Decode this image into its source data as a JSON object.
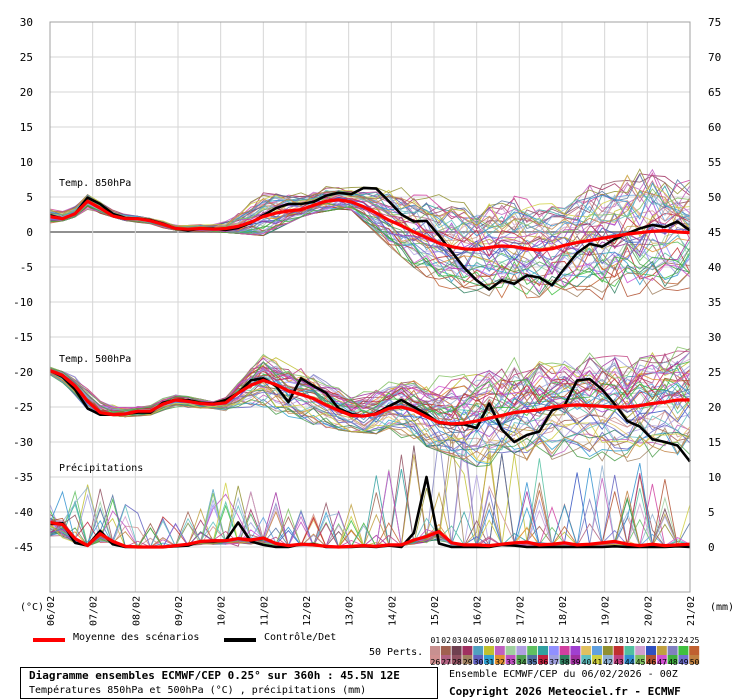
{
  "chart_data": {
    "type": "line",
    "left_axis_ticks": [
      30,
      25,
      20,
      15,
      10,
      5,
      0,
      -5,
      -10,
      -15,
      -20,
      -25,
      -30,
      -35,
      -40,
      -45
    ],
    "right_axis_ticks": [
      75,
      70,
      65,
      60,
      55,
      50,
      45,
      40,
      35,
      30,
      25,
      20,
      15,
      10,
      5,
      0
    ],
    "left_unit": "(°C)",
    "right_unit": "(mm)",
    "x_labels": [
      "06/02",
      "07/02",
      "08/02",
      "09/02",
      "10/02",
      "11/02",
      "12/02",
      "13/02",
      "14/02",
      "15/02",
      "16/02",
      "17/02",
      "18/02",
      "19/02",
      "20/02",
      "21/02"
    ],
    "panels": [
      {
        "label": "Temp. 850hPa",
        "mean": [
          2.2,
          1.9,
          2.6,
          4.4,
          3.4,
          2.3,
          1.9,
          1.9,
          1.6,
          1.1,
          0.5,
          0.4,
          0.5,
          0.4,
          0.5,
          0.8,
          1.4,
          2.2,
          2.7,
          3.0,
          3.2,
          3.8,
          4.4,
          4.6,
          4.3,
          3.6,
          2.7,
          1.7,
          0.9,
          0.0,
          -0.8,
          -1.6,
          -2.1,
          -2.4,
          -2.5,
          -2.2,
          -2.0,
          -2.1,
          -2.4,
          -2.6,
          -2.4,
          -1.9,
          -1.5,
          -1.2,
          -0.9,
          -0.6,
          -0.3,
          -0.1,
          0.1,
          0.2,
          0.0,
          -0.1
        ],
        "control": [
          2.4,
          1.9,
          2.6,
          4.9,
          4.0,
          2.6,
          2.0,
          1.9,
          1.7,
          1.2,
          0.5,
          0.2,
          0.5,
          0.5,
          0.3,
          0.6,
          1.3,
          2.4,
          3.4,
          4.0,
          4.0,
          4.3,
          5.2,
          5.6,
          5.4,
          6.3,
          6.2,
          4.4,
          2.5,
          1.5,
          1.6,
          -0.5,
          -2.8,
          -5.1,
          -6.9,
          -8.2,
          -6.9,
          -7.4,
          -6.2,
          -6.5,
          -7.6,
          -5.2,
          -3.0,
          -1.7,
          -2.1,
          -1.0,
          -0.2,
          0.5,
          1.0,
          0.7,
          1.5,
          0.2
        ],
        "spread_daily": [
          [
            1.0,
            3.3
          ],
          [
            3.0,
            5.6
          ],
          [
            1.2,
            2.3
          ],
          [
            0.2,
            1.3
          ],
          [
            0.0,
            1.5
          ],
          [
            -0.5,
            7.5
          ],
          [
            2.5,
            6.8
          ],
          [
            3.5,
            7.5
          ],
          [
            -2.3,
            7.7
          ],
          [
            -7.5,
            6.2
          ],
          [
            -9.2,
            5.5
          ],
          [
            -9.5,
            6.2
          ],
          [
            -9.0,
            7.0
          ],
          [
            -9.7,
            8.8
          ],
          [
            -9.7,
            10.0
          ],
          [
            -8.0,
            8.3
          ]
        ]
      },
      {
        "label": "Temp. 500hPa",
        "mean": [
          -19.8,
          -20.5,
          -22.0,
          -24.2,
          -25.8,
          -26.1,
          -26.0,
          -25.6,
          -25.6,
          -24.6,
          -24.0,
          -24.2,
          -24.5,
          -24.6,
          -24.4,
          -23.0,
          -21.9,
          -21.2,
          -21.8,
          -22.7,
          -23.2,
          -23.8,
          -24.7,
          -25.5,
          -26.2,
          -26.3,
          -26.0,
          -25.2,
          -25.0,
          -25.5,
          -26.4,
          -27.2,
          -27.4,
          -27.3,
          -27.0,
          -26.6,
          -26.2,
          -25.8,
          -25.6,
          -25.4,
          -25.0,
          -24.8,
          -24.7,
          -24.8,
          -24.9,
          -25.0,
          -25.0,
          -24.8,
          -24.5,
          -24.3,
          -24.0,
          -24.0
        ],
        "control": [
          -19.8,
          -20.7,
          -22.5,
          -25.2,
          -26.1,
          -26.1,
          -26.0,
          -25.8,
          -25.8,
          -24.4,
          -24.0,
          -24.0,
          -24.4,
          -24.5,
          -24.0,
          -23.0,
          -21.2,
          -20.9,
          -22.0,
          -24.3,
          -20.9,
          -22.0,
          -23.0,
          -25.2,
          -26.0,
          -26.3,
          -25.9,
          -24.9,
          -24.0,
          -25.0,
          -26.0,
          -27.3,
          -27.5,
          -27.5,
          -28.0,
          -24.5,
          -28.2,
          -30.0,
          -29.0,
          -28.5,
          -25.5,
          -24.8,
          -21.2,
          -21.0,
          -22.5,
          -24.6,
          -27.0,
          -27.8,
          -29.6,
          -30.0,
          -30.5,
          -32.8
        ],
        "spread_daily": [
          [
            -20.5,
            -19.3
          ],
          [
            -26.0,
            -21.5
          ],
          [
            -26.5,
            -24.8
          ],
          [
            -25.5,
            -23.2
          ],
          [
            -26.0,
            -24.5
          ],
          [
            -26.5,
            -17.5
          ],
          [
            -27.5,
            -19.0
          ],
          [
            -28.5,
            -21.0
          ],
          [
            -29.0,
            -21.0
          ],
          [
            -31.0,
            -18.0
          ],
          [
            -33.5,
            -16.5
          ],
          [
            -33.0,
            -16.5
          ],
          [
            -32.5,
            -17.0
          ],
          [
            -33.5,
            -16.0
          ],
          [
            -33.0,
            -16.0
          ],
          [
            -33.0,
            -15.0
          ]
        ]
      },
      {
        "label": "Précipitations",
        "unit": "mm",
        "mean": [
          3.5,
          3.2,
          1.2,
          0.2,
          1.9,
          0.8,
          0.1,
          0.0,
          0.0,
          0.0,
          0.2,
          0.4,
          0.8,
          0.9,
          0.9,
          1.2,
          1.0,
          1.3,
          0.5,
          0.2,
          0.4,
          0.3,
          0.1,
          0.0,
          0.1,
          0.2,
          0.1,
          0.3,
          0.3,
          1.0,
          1.5,
          2.2,
          0.6,
          0.3,
          0.3,
          0.2,
          0.4,
          0.6,
          0.7,
          0.3,
          0.4,
          0.6,
          0.3,
          0.4,
          0.6,
          0.8,
          0.4,
          0.2,
          0.4,
          0.2,
          0.3,
          0.4
        ],
        "control": [
          3.3,
          3.4,
          0.6,
          0.2,
          2.3,
          0.4,
          0.0,
          0.0,
          0.0,
          0.0,
          0.1,
          0.2,
          0.8,
          0.8,
          0.9,
          3.5,
          0.8,
          0.3,
          0.0,
          0.0,
          0.4,
          0.4,
          0.0,
          0.0,
          0.0,
          0.1,
          0.0,
          0.2,
          0.0,
          2.0,
          10.0,
          0.5,
          0.0,
          0.0,
          0.0,
          0.0,
          0.3,
          0.2,
          0.0,
          0.0,
          0.0,
          0.0,
          0.0,
          0.0,
          0.0,
          0.1,
          0.0,
          0.0,
          0.0,
          0.0,
          0.1,
          0.0
        ],
        "spread_daily_max": [
          8.0,
          10.0,
          5.5,
          4.0,
          10.0,
          9.0,
          6.0,
          7.5,
          13.0,
          17.0,
          16.0,
          14.0,
          12.0,
          13.0,
          12.0,
          8.0
        ]
      }
    ],
    "mean_color": "#ff0000",
    "control_color": "#000000"
  },
  "legend": {
    "mean_label": "Moyenne des scénarios",
    "control_label": "Contrôle/Det",
    "perts_label": "50 Perts.",
    "member_numbers": [
      "01",
      "02",
      "03",
      "04",
      "05",
      "06",
      "07",
      "08",
      "09",
      "10",
      "11",
      "12",
      "13",
      "14",
      "15",
      "16",
      "17",
      "18",
      "19",
      "20",
      "21",
      "22",
      "23",
      "24",
      "25",
      "26",
      "27",
      "28",
      "29",
      "30",
      "31",
      "32",
      "33",
      "34",
      "35",
      "36",
      "37",
      "38",
      "39",
      "40",
      "41",
      "42",
      "43",
      "44",
      "45",
      "46",
      "47",
      "48",
      "49",
      "50"
    ],
    "member_colors": [
      "#c89090",
      "#a06050",
      "#704050",
      "#a03060",
      "#50a0c0",
      "#c0c030",
      "#c060c0",
      "#a0d0a0",
      "#b0a0e0",
      "#60c060",
      "#30a0a0",
      "#9090ff",
      "#d040a0",
      "#a040d0",
      "#e0c060",
      "#60a0e0",
      "#909030",
      "#c03030",
      "#50c0a0",
      "#d0a0d0",
      "#3050c0",
      "#c0a040",
      "#8080c0",
      "#40c040",
      "#c06030",
      "#d09090",
      "#b06080",
      "#905060",
      "#a08060",
      "#6060c0",
      "#30a0d0",
      "#e09030",
      "#c050c0",
      "#50a050",
      "#5070a0",
      "#c02040",
      "#a0a0e0",
      "#308060",
      "#a030a0",
      "#60c0c0",
      "#d0d040",
      "#90b0d0",
      "#c04080",
      "#3090d0",
      "#80c060",
      "#b05030",
      "#d050d0",
      "#40b040",
      "#7070d0",
      "#c08040"
    ]
  },
  "footer": {
    "title": "Diagramme ensembles ECMWF/CEP 0.25° sur 360h : 45.5N 12E",
    "subtitle": "Températures 850hPa et 500hPa (°C) , précipitations (mm)",
    "run_info": "Ensemble ECMWF/CEP du 06/02/2026 - 00Z",
    "copyright": "Copyright 2026 Meteociel.fr - ECMWF"
  }
}
